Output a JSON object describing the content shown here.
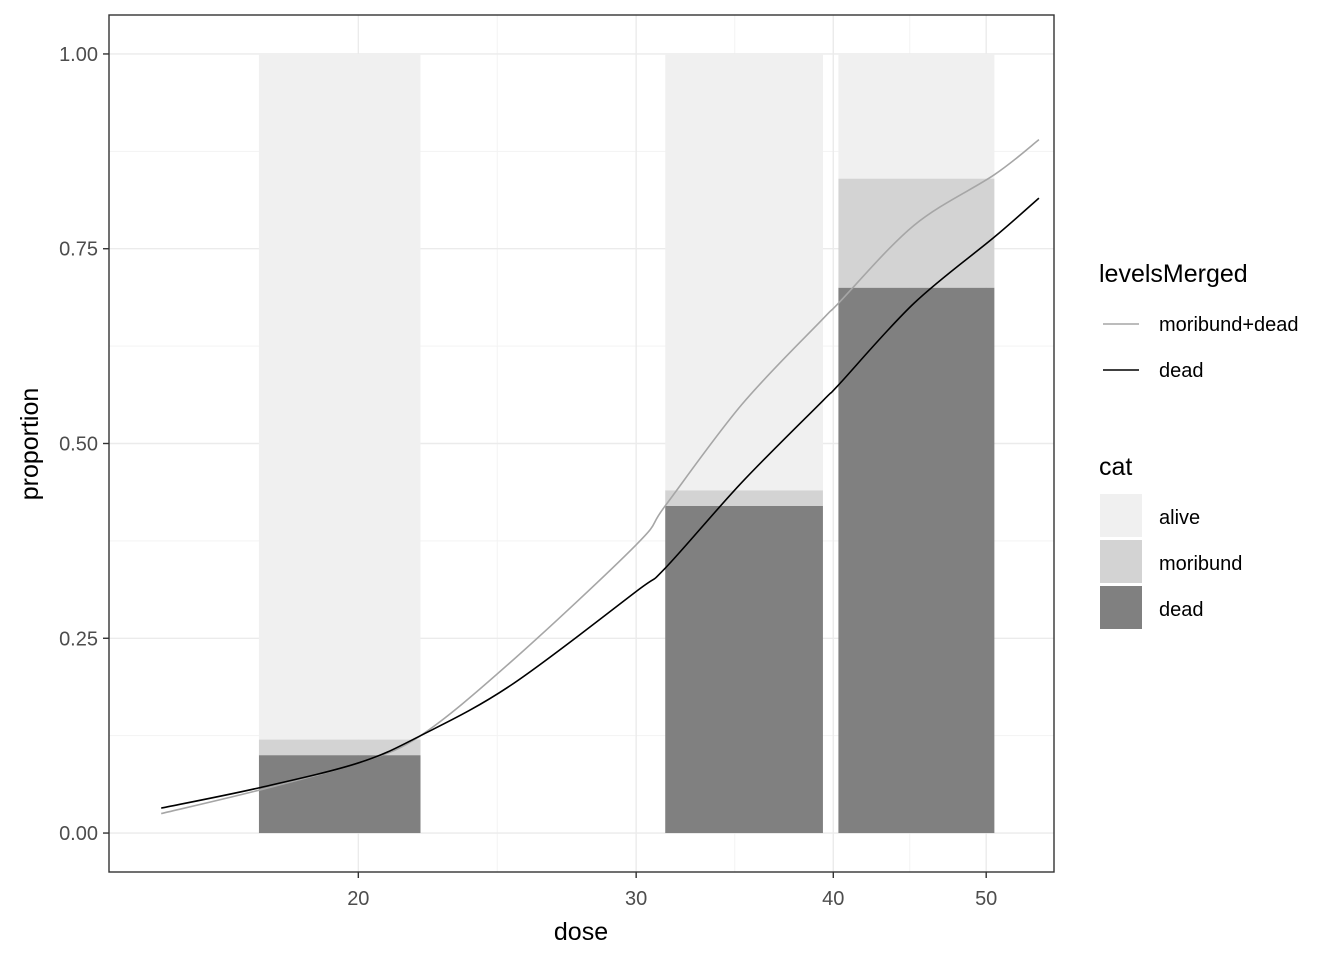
{
  "chart_data": {
    "type": "bar",
    "title": "",
    "xlabel": "dose",
    "ylabel": "proportion",
    "x_scale": "log",
    "xlim": [
      13.9,
      55.2
    ],
    "ylim": [
      -0.05,
      1.05
    ],
    "x_ticks": [
      20,
      30,
      40,
      50
    ],
    "x_tick_labels": [
      "20",
      "30",
      "40",
      "50"
    ],
    "y_ticks": [
      0,
      0.25,
      0.5,
      0.75,
      1
    ],
    "y_tick_labels": [
      "0.00",
      "0.25",
      "0.50",
      "0.75",
      "1.00"
    ],
    "grid": true,
    "bars": [
      {
        "dose_from": 17.3,
        "dose_to": 21.9,
        "dead": 0.1,
        "moribund": 0.02,
        "alive": 0.88
      },
      {
        "dose_from": 31.3,
        "dose_to": 39.4,
        "dead": 0.42,
        "moribund": 0.02,
        "alive": 0.56
      },
      {
        "dose_from": 40.3,
        "dose_to": 50.6,
        "dead": 0.7,
        "moribund": 0.14,
        "alive": 0.16
      }
    ],
    "fill_legend": {
      "title": "cat",
      "entries": [
        {
          "key": "alive",
          "label": "alive",
          "color": "#f0f0f0"
        },
        {
          "key": "moribund",
          "label": "moribund",
          "color": "#d3d3d3"
        },
        {
          "key": "dead",
          "label": "dead",
          "color": "#808080"
        }
      ]
    },
    "line_legend": {
      "title": "levelsMerged",
      "entries": [
        {
          "label": "moribund+dead",
          "color": "#a6a6a6"
        },
        {
          "label": "dead",
          "color": "#000000"
        }
      ]
    },
    "series": [
      {
        "name": "moribund+dead",
        "color": "#a6a6a6",
        "x": [
          15,
          17.3,
          20,
          21.9,
          25,
          30,
          31.3,
          35,
          39.4,
          40.3,
          45,
          50.6,
          54
        ],
        "y": [
          0.025,
          0.055,
          0.09,
          0.125,
          0.22,
          0.37,
          0.42,
          0.55,
          0.66,
          0.68,
          0.78,
          0.845,
          0.89
        ]
      },
      {
        "name": "dead",
        "color": "#000000",
        "x": [
          15,
          17.3,
          20,
          21.9,
          25,
          30,
          31.3,
          35,
          39.4,
          40.3,
          45,
          50.6,
          54
        ],
        "y": [
          0.032,
          0.058,
          0.09,
          0.125,
          0.19,
          0.31,
          0.34,
          0.45,
          0.555,
          0.575,
          0.68,
          0.765,
          0.815
        ]
      }
    ]
  }
}
